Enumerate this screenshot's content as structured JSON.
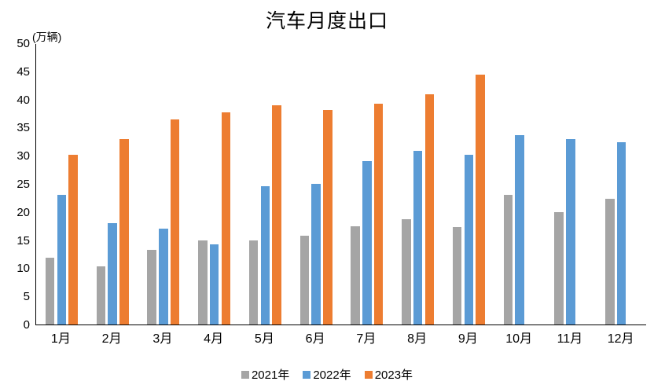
{
  "chart_data": {
    "type": "bar",
    "title": "汽车月度出口",
    "unit_label": "(万辆)",
    "xlabel": "",
    "ylabel": "万辆",
    "ylim": [
      0,
      50
    ],
    "y_tick_step": 5,
    "y_ticks": [
      0,
      5,
      10,
      15,
      20,
      25,
      30,
      35,
      40,
      45,
      50
    ],
    "grid": false,
    "legend_position": "bottom",
    "categories": [
      "1月",
      "2月",
      "3月",
      "4月",
      "5月",
      "6月",
      "7月",
      "8月",
      "9月",
      "10月",
      "11月",
      "12月"
    ],
    "series": [
      {
        "name": "2021年",
        "color": "#A5A5A5",
        "values": [
          11.9,
          10.4,
          13.3,
          15.0,
          15.0,
          15.8,
          17.4,
          18.7,
          17.3,
          23.1,
          20.0,
          22.3
        ]
      },
      {
        "name": "2022年",
        "color": "#5B9BD5",
        "values": [
          23.1,
          18.0,
          17.0,
          14.2,
          24.6,
          25.0,
          29.0,
          30.8,
          30.1,
          33.7,
          33.0,
          32.4
        ]
      },
      {
        "name": "2023年",
        "color": "#ED7D31",
        "values": [
          30.1,
          33.0,
          36.5,
          37.7,
          38.9,
          38.2,
          39.3,
          40.9,
          44.4,
          null,
          null,
          null
        ]
      }
    ]
  }
}
